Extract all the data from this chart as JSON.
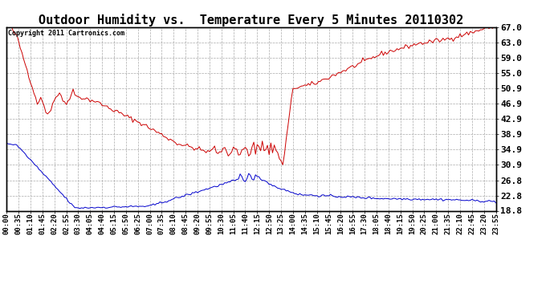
{
  "title": "Outdoor Humidity vs.  Temperature Every 5 Minutes 20110302",
  "copyright_text": "Copyright 2011 Cartronics.com",
  "bg_color": "#ffffff",
  "plot_bg_color": "#ffffff",
  "grid_color": "#aaaaaa",
  "red_line_color": "#cc0000",
  "blue_line_color": "#0000cc",
  "right_yticks": [
    18.8,
    22.8,
    26.8,
    30.9,
    34.9,
    38.9,
    42.9,
    46.9,
    50.9,
    55.0,
    59.0,
    63.0,
    67.0
  ],
  "ylim": [
    18.8,
    67.0
  ],
  "title_fontsize": 11,
  "tick_fontsize": 6.5,
  "ytick_fontsize": 8
}
